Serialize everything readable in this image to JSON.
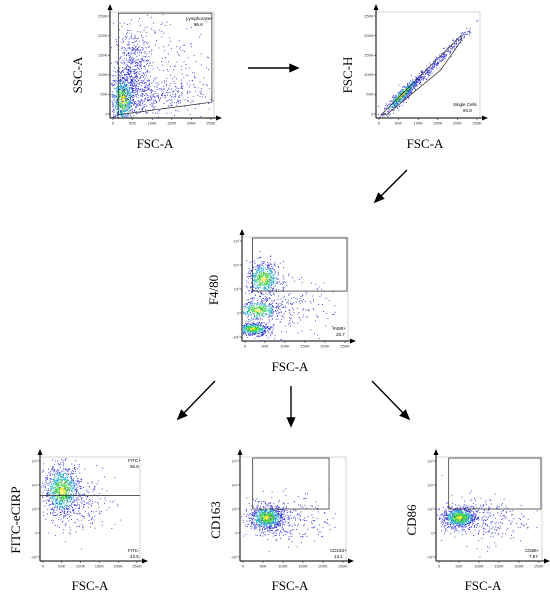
{
  "flow": {
    "panels": [
      {
        "id": "p1",
        "ylabel": "SSC-A",
        "xlabel": "FSC-A",
        "x_ticks": [
          "0",
          "50K",
          "100K",
          "150K",
          "200K",
          "250K"
        ],
        "y_ticks": [
          "0",
          "50K",
          "100K",
          "150K",
          "200K",
          "250K"
        ],
        "gate_name": "Lymphocytes",
        "gate_value": "55.6",
        "gate_label_pos": "top-right"
      },
      {
        "id": "p2",
        "ylabel": "FSC-H",
        "xlabel": "FSC-A",
        "x_ticks": [
          "0",
          "50K",
          "100K",
          "150K",
          "200K",
          "250K"
        ],
        "y_ticks": [
          "0",
          "50K",
          "100K",
          "150K",
          "200K",
          "250K"
        ],
        "gate_name": "Single Cells",
        "gate_value": "94.8",
        "gate_label_pos": "bottom-right"
      },
      {
        "id": "p3",
        "ylabel": "F4/80",
        "xlabel": "FSC-A",
        "x_ticks": [
          "0",
          "50K",
          "100K",
          "150K",
          "200K",
          "250K"
        ],
        "y_ticks": [
          "-10³",
          "0",
          "10³",
          "10⁴",
          "10⁵"
        ],
        "gate_name": "F480+",
        "gate_value": "25.7",
        "gate_label_pos": "bottom-right"
      },
      {
        "id": "p4",
        "ylabel": "FITC-eCIRP",
        "xlabel": "FSC-A",
        "x_ticks": [
          "0",
          "50K",
          "100K",
          "150K",
          "200K",
          "250K"
        ],
        "y_ticks": [
          "-10³",
          "0",
          "10³",
          "10⁴",
          "10⁵"
        ],
        "gate_name": "FITC+",
        "gate_value": "56.5",
        "gate_name_2": "FITC-",
        "gate_value_2": "43.5",
        "gate_label_pos": "top-right"
      },
      {
        "id": "p5",
        "ylabel": "CD163",
        "xlabel": "FSC-A",
        "x_ticks": [
          "0",
          "50K",
          "100K",
          "150K",
          "200K",
          "250K"
        ],
        "y_ticks": [
          "-10³",
          "0",
          "10³",
          "10⁴",
          "10⁵"
        ],
        "gate_name": "CD163+",
        "gate_value": "13.1",
        "gate_label_pos": "bottom-right"
      },
      {
        "id": "p6",
        "ylabel": "CD86",
        "xlabel": "FSC-A",
        "x_ticks": [
          "0",
          "50K",
          "100K",
          "150K",
          "200K",
          "250K"
        ],
        "y_ticks": [
          "-10³",
          "0",
          "10³",
          "10⁴",
          "10⁵"
        ],
        "gate_name": "CD86+",
        "gate_value": "7.57",
        "gate_label_pos": "bottom-right"
      }
    ],
    "colors": {
      "dots_low": "#2b2bd6",
      "dots_mid": "#1fb0c8",
      "dots_high": "#3ccf3c",
      "dots_peak": "#f2e21a",
      "axis": "#000000"
    }
  }
}
